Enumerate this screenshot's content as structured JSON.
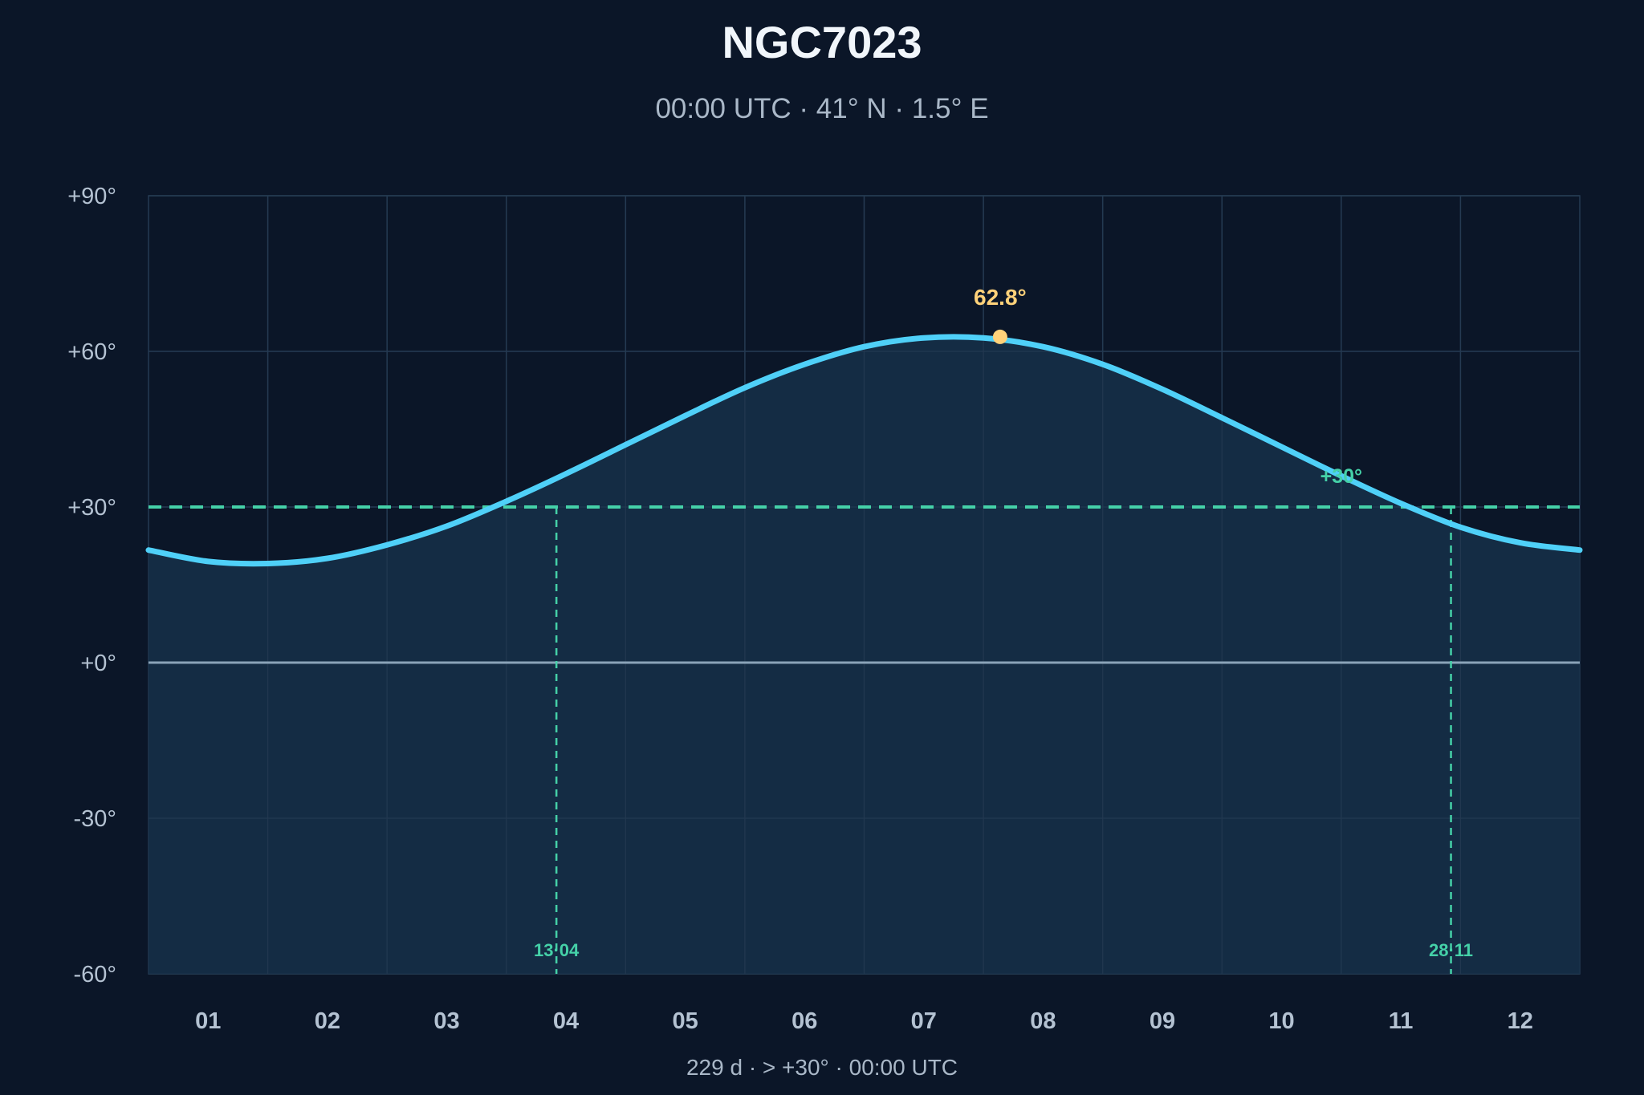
{
  "chart_data": {
    "type": "area",
    "title": "NGC7023",
    "subtitle": "00:00 UTC · 41° N · 1.5° E",
    "footer": "229 d  ·  > +30°  ·  00:00 UTC",
    "categories": [
      "01",
      "02",
      "03",
      "04",
      "05",
      "06",
      "07",
      "08",
      "09",
      "10",
      "11",
      "12"
    ],
    "y_ticks": [
      "+90°",
      "+60°",
      "+30°",
      "+0°",
      "-30°",
      "-60°"
    ],
    "y_tick_values": [
      90,
      60,
      30,
      0,
      -30,
      -60
    ],
    "ylim": [
      -60,
      90
    ],
    "xlim": [
      0.5,
      12.5
    ],
    "series": [
      {
        "x": [
          0.5,
          1.0,
          1.5,
          2.0,
          2.5,
          3.0,
          3.5,
          4.0,
          4.5,
          5.0,
          5.5,
          6.0,
          6.5,
          7.0,
          7.5,
          8.0,
          8.5,
          9.0,
          9.5,
          10.0,
          10.5,
          11.0,
          11.5,
          12.0,
          12.5
        ],
        "values": [
          21.7,
          19.5,
          19.1,
          20.1,
          22.7,
          26.3,
          31.1,
          36.4,
          42.0,
          47.6,
          53.0,
          57.5,
          60.9,
          62.6,
          62.6,
          60.9,
          57.5,
          52.7,
          47.2,
          41.6,
          36.0,
          30.7,
          26.1,
          23.1,
          21.7
        ]
      }
    ],
    "peak": {
      "x": 7.64,
      "value": 62.8,
      "label": "62.8°"
    },
    "threshold": {
      "value": 30,
      "label": "+30°"
    },
    "crossings": [
      {
        "x": 3.92,
        "label": "13·04"
      },
      {
        "x": 11.42,
        "label": "28·11"
      }
    ],
    "colors": {
      "background": "#0b1628",
      "plot_fill": "#163049",
      "curve": "#4fd0f8",
      "threshold": "#45d1a8",
      "peak": "#ffd27a",
      "zero_line": "#8aa3b8",
      "grid": "#253a52"
    },
    "grid": true,
    "legend": "none"
  }
}
